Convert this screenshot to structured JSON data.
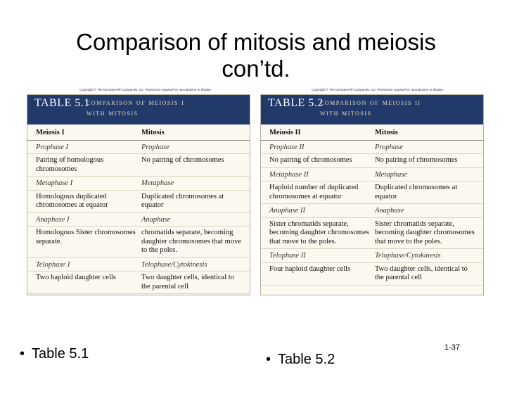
{
  "title": [
    "Comparison of mitosis and meiosis",
    "con’td."
  ],
  "copyright": "Copyright © The McGraw-Hill Companies, Inc. Permission required for reproduction or display.",
  "tables": [
    {
      "number": "TABLE 5.1",
      "title": [
        "COMPARISON OF MEIOSIS I",
        "WITH MITOSIS"
      ],
      "header": [
        "Meiosis I",
        "Mitosis"
      ],
      "rows": [
        [
          "Prophase I",
          "Prophase"
        ],
        [
          "Pairing of homologous chromosomes",
          "No pairing of chromosomes"
        ],
        [
          "Metaphase I",
          "Metaphase"
        ],
        [
          "Homologous duplicated chromosomes at equator",
          "Duplicated chromosomes at equator"
        ],
        [
          "Anaphase I",
          "Anaphase"
        ],
        [
          "Homologous Sister chromosomes separate.",
          "chromatids separate, becoming daughter chromosomes that move to the poles."
        ],
        [
          "Telophase I",
          "Telophase/Cytokinesis"
        ],
        [
          "Two haploid daughter cells",
          "Two daughter cells, identical to the parental cell"
        ]
      ]
    },
    {
      "number": "TABLE 5.2",
      "title": [
        "COMPARISON OF MEIOSIS II",
        "WITH MITOSIS"
      ],
      "header": [
        "Meiosis II",
        "Mitosis"
      ],
      "rows": [
        [
          "Prophase II",
          "Prophase"
        ],
        [
          "No pairing of chromosomes",
          "No pairing of chromosomes"
        ],
        [
          "Metaphase II",
          "Metaphase"
        ],
        [
          "Haploid number of duplicated chromosomes at equator",
          "Duplicated chromosomes at equator"
        ],
        [
          "Anaphase II",
          "Anaphase"
        ],
        [
          "Sister chromatids separate, becoming daughter chromosomes that move to the poles.",
          "Sister chromatids separate, becoming daughter chromosomes that move to the poles."
        ],
        [
          "Telophase II",
          "Telophase/Cytokinesis"
        ],
        [
          "Four haploid daughter cells",
          "Two daughter cells, identical to the parental cell"
        ]
      ]
    }
  ],
  "bullets": [
    "Table 5.1",
    "Table 5.2"
  ],
  "slide_number": "1-37"
}
